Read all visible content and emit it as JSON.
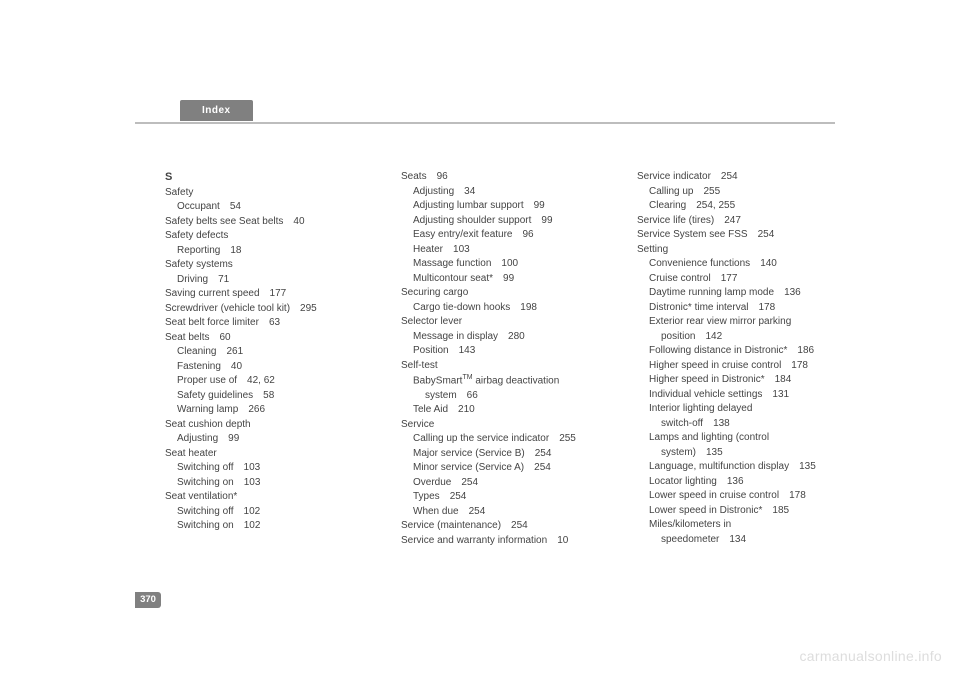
{
  "header": {
    "label": "Index"
  },
  "pagenum": "370",
  "watermark": "carmanualsonline.info",
  "col1": [
    {
      "lv": 1,
      "text": "S",
      "cls": "letter"
    },
    {
      "lv": 1,
      "text": "Safety"
    },
    {
      "lv": 2,
      "text": "Occupant",
      "page": "54"
    },
    {
      "lv": 1,
      "text": "Safety belts see Seat belts",
      "page": "40"
    },
    {
      "lv": 1,
      "text": "Safety defects"
    },
    {
      "lv": 2,
      "text": "Reporting",
      "page": "18"
    },
    {
      "lv": 1,
      "text": "Safety systems"
    },
    {
      "lv": 2,
      "text": "Driving",
      "page": "71"
    },
    {
      "lv": 1,
      "text": "Saving current speed",
      "page": "177"
    },
    {
      "lv": 1,
      "text": "Screwdriver (vehicle tool kit)",
      "page": "295"
    },
    {
      "lv": 1,
      "text": "Seat belt force limiter",
      "page": "63"
    },
    {
      "lv": 1,
      "text": "Seat belts",
      "page": "60"
    },
    {
      "lv": 2,
      "text": "Cleaning",
      "page": "261"
    },
    {
      "lv": 2,
      "text": "Fastening",
      "page": "40"
    },
    {
      "lv": 2,
      "text": "Proper use of",
      "page": "42, 62"
    },
    {
      "lv": 2,
      "text": "Safety guidelines",
      "page": "58"
    },
    {
      "lv": 2,
      "text": "Warning lamp",
      "page": "266"
    },
    {
      "lv": 1,
      "text": "Seat cushion depth"
    },
    {
      "lv": 2,
      "text": "Adjusting",
      "page": "99"
    },
    {
      "lv": 1,
      "text": "Seat heater"
    },
    {
      "lv": 2,
      "text": "Switching off",
      "page": "103"
    },
    {
      "lv": 2,
      "text": "Switching on",
      "page": "103"
    },
    {
      "lv": 1,
      "text": "Seat ventilation*"
    },
    {
      "lv": 2,
      "text": "Switching off",
      "page": "102"
    },
    {
      "lv": 2,
      "text": "Switching on",
      "page": "102"
    }
  ],
  "col2": [
    {
      "lv": 1,
      "text": "Seats",
      "page": "96"
    },
    {
      "lv": 2,
      "text": "Adjusting",
      "page": "34"
    },
    {
      "lv": 2,
      "text": "Adjusting lumbar support",
      "page": "99"
    },
    {
      "lv": 2,
      "text": "Adjusting shoulder support",
      "page": "99"
    },
    {
      "lv": 2,
      "text": "Easy entry/exit feature",
      "page": "96"
    },
    {
      "lv": 2,
      "text": "Heater",
      "page": "103"
    },
    {
      "lv": 2,
      "text": "Massage function",
      "page": "100"
    },
    {
      "lv": 2,
      "text": "Multicontour seat*",
      "page": "99"
    },
    {
      "lv": 1,
      "text": "Securing cargo"
    },
    {
      "lv": 2,
      "text": "Cargo tie-down hooks",
      "page": "198"
    },
    {
      "lv": 1,
      "text": "Selector lever"
    },
    {
      "lv": 2,
      "text": "Message in display",
      "page": "280"
    },
    {
      "lv": 2,
      "text": "Position",
      "page": "143"
    },
    {
      "lv": 1,
      "text": "Self-test"
    },
    {
      "lv": 2,
      "html": "BabySmart<span class=\"sup\">TM</span> airbag deactivation"
    },
    {
      "lv": 3,
      "text": "system",
      "page": "66"
    },
    {
      "lv": 2,
      "text": "Tele Aid",
      "page": "210"
    },
    {
      "lv": 1,
      "text": "Service"
    },
    {
      "lv": 2,
      "text": "Calling up the service indicator",
      "page": "255"
    },
    {
      "lv": 2,
      "text": "Major service (Service B)",
      "page": "254"
    },
    {
      "lv": 2,
      "text": "Minor service (Service A)",
      "page": "254"
    },
    {
      "lv": 2,
      "text": "Overdue",
      "page": "254"
    },
    {
      "lv": 2,
      "text": "Types",
      "page": "254"
    },
    {
      "lv": 2,
      "text": "When due",
      "page": "254"
    },
    {
      "lv": 1,
      "text": "Service (maintenance)",
      "page": "254"
    },
    {
      "lv": 1,
      "text": "Service and warranty information",
      "page": "10"
    }
  ],
  "col3": [
    {
      "lv": 1,
      "text": "Service indicator",
      "page": "254"
    },
    {
      "lv": 2,
      "text": "Calling up",
      "page": "255"
    },
    {
      "lv": 2,
      "text": "Clearing",
      "page": "254, 255"
    },
    {
      "lv": 1,
      "text": "Service life (tires)",
      "page": "247"
    },
    {
      "lv": 1,
      "text": "Service System see FSS",
      "page": "254"
    },
    {
      "lv": 1,
      "text": "Setting"
    },
    {
      "lv": 2,
      "text": "Convenience functions",
      "page": "140"
    },
    {
      "lv": 2,
      "text": "Cruise control",
      "page": "177"
    },
    {
      "lv": 2,
      "text": "Daytime running lamp mode",
      "page": "136"
    },
    {
      "lv": 2,
      "text": "Distronic* time interval",
      "page": "178"
    },
    {
      "lv": 2,
      "text": "Exterior rear view mirror parking"
    },
    {
      "lv": 3,
      "text": "position",
      "page": "142"
    },
    {
      "lv": 2,
      "text": "Following distance in Distronic*",
      "page": "186"
    },
    {
      "lv": 2,
      "text": "Higher speed in cruise control",
      "page": "178"
    },
    {
      "lv": 2,
      "text": "Higher speed in Distronic*",
      "page": "184"
    },
    {
      "lv": 2,
      "text": "Individual vehicle settings",
      "page": "131"
    },
    {
      "lv": 2,
      "text": "Interior lighting delayed"
    },
    {
      "lv": 3,
      "text": "switch-off",
      "page": "138"
    },
    {
      "lv": 2,
      "text": "Lamps and lighting (control"
    },
    {
      "lv": 3,
      "text": "system)",
      "page": "135"
    },
    {
      "lv": 2,
      "text": "Language, multifunction display",
      "page": "135"
    },
    {
      "lv": 2,
      "text": "Locator lighting",
      "page": "136"
    },
    {
      "lv": 2,
      "text": "Lower speed in cruise control",
      "page": "178"
    },
    {
      "lv": 2,
      "text": "Lower speed in Distronic*",
      "page": "185"
    },
    {
      "lv": 2,
      "text": "Miles/kilometers in"
    },
    {
      "lv": 3,
      "text": "speedometer",
      "page": "134"
    }
  ]
}
